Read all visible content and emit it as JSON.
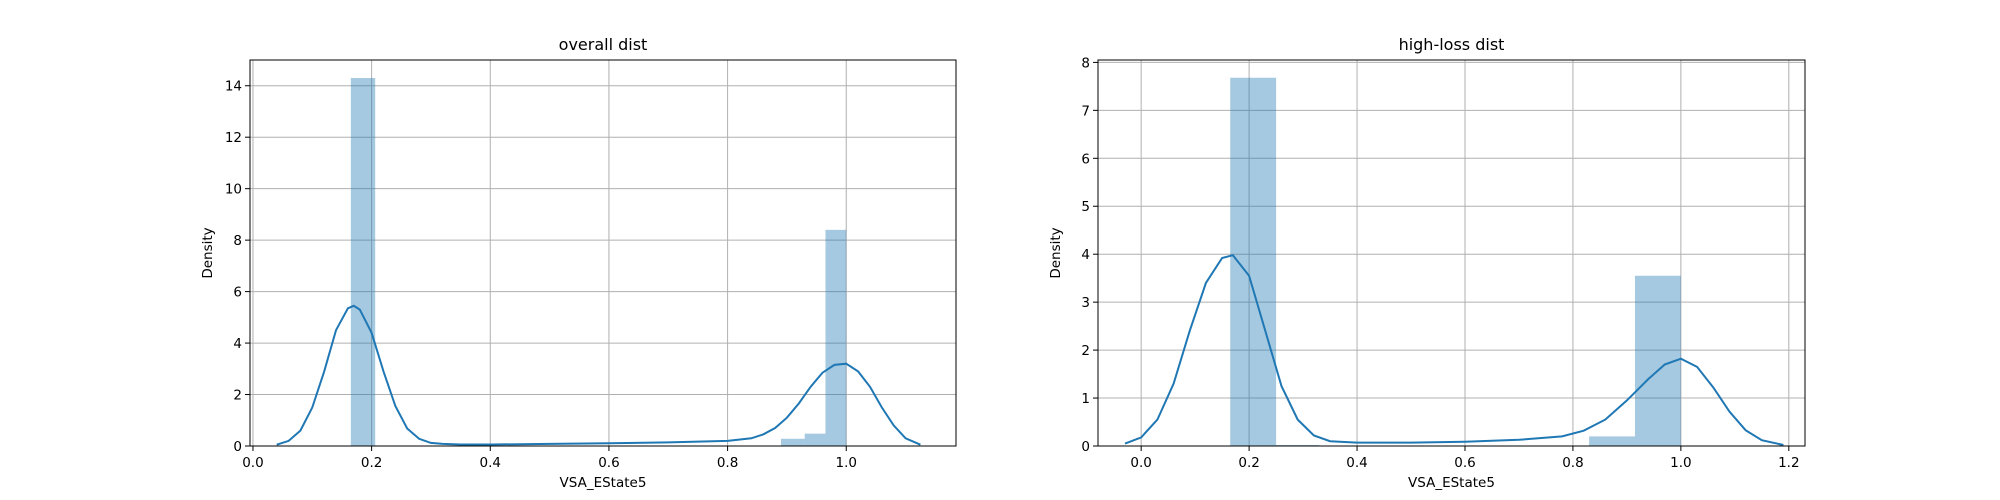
{
  "chart_data": [
    {
      "type": "histogram+kde",
      "title": "overall dist",
      "xlabel": "VSA_EState5",
      "ylabel": "Density",
      "xlim": [
        -0.005,
        1.185
      ],
      "ylim": [
        0,
        15
      ],
      "grid": true,
      "xticks": [
        0.0,
        0.2,
        0.4,
        0.6,
        0.8,
        1.0
      ],
      "xtick_labels": [
        "0.0",
        "0.2",
        "0.4",
        "0.6",
        "0.8",
        "1.0"
      ],
      "yticks": [
        0,
        2,
        4,
        6,
        8,
        10,
        12,
        14
      ],
      "ytick_labels": [
        "0",
        "2",
        "4",
        "6",
        "8",
        "10",
        "12",
        "14"
      ],
      "color": "#1f77b4",
      "bars": [
        {
          "x0": 0.165,
          "x1": 0.206,
          "value": 14.3
        },
        {
          "x0": 0.89,
          "x1": 0.93,
          "value": 0.28
        },
        {
          "x0": 0.93,
          "x1": 0.965,
          "value": 0.48
        },
        {
          "x0": 0.965,
          "x1": 1.0,
          "value": 8.4
        }
      ],
      "kde": {
        "x": [
          0.04,
          0.06,
          0.08,
          0.1,
          0.12,
          0.14,
          0.16,
          0.17,
          0.18,
          0.2,
          0.22,
          0.24,
          0.26,
          0.28,
          0.3,
          0.32,
          0.35,
          0.4,
          0.5,
          0.6,
          0.7,
          0.8,
          0.84,
          0.86,
          0.88,
          0.9,
          0.92,
          0.94,
          0.96,
          0.98,
          1.0,
          1.02,
          1.04,
          1.06,
          1.08,
          1.1,
          1.125
        ],
        "y": [
          0.05,
          0.2,
          0.6,
          1.5,
          2.9,
          4.5,
          5.35,
          5.45,
          5.3,
          4.4,
          2.9,
          1.55,
          0.68,
          0.28,
          0.12,
          0.08,
          0.06,
          0.06,
          0.08,
          0.11,
          0.14,
          0.2,
          0.3,
          0.45,
          0.7,
          1.1,
          1.65,
          2.3,
          2.85,
          3.15,
          3.2,
          2.9,
          2.3,
          1.5,
          0.8,
          0.3,
          0.05
        ]
      }
    },
    {
      "type": "histogram+kde",
      "title": "high-loss dist",
      "xlabel": "VSA_EState5",
      "ylabel": "Density",
      "xlim": [
        -0.08,
        1.23
      ],
      "ylim": [
        0,
        8.05
      ],
      "grid": true,
      "xticks": [
        0.0,
        0.2,
        0.4,
        0.6,
        0.8,
        1.0,
        1.2
      ],
      "xtick_labels": [
        "0.0",
        "0.2",
        "0.4",
        "0.6",
        "0.8",
        "1.0",
        "1.2"
      ],
      "yticks": [
        0,
        1,
        2,
        3,
        4,
        5,
        6,
        7,
        8
      ],
      "ytick_labels": [
        "0",
        "1",
        "2",
        "3",
        "4",
        "5",
        "6",
        "7",
        "8"
      ],
      "color": "#1f77b4",
      "bars": [
        {
          "x0": 0.165,
          "x1": 0.25,
          "value": 7.68
        },
        {
          "x0": 0.25,
          "x1": 0.33,
          "value": 0.02
        },
        {
          "x0": 0.83,
          "x1": 0.915,
          "value": 0.2
        },
        {
          "x0": 0.915,
          "x1": 1.0,
          "value": 3.55
        }
      ],
      "kde": {
        "x": [
          -0.03,
          0.0,
          0.03,
          0.06,
          0.09,
          0.12,
          0.15,
          0.17,
          0.2,
          0.23,
          0.26,
          0.29,
          0.32,
          0.35,
          0.4,
          0.5,
          0.6,
          0.7,
          0.78,
          0.82,
          0.86,
          0.9,
          0.94,
          0.97,
          1.0,
          1.03,
          1.06,
          1.09,
          1.12,
          1.15,
          1.19
        ],
        "y": [
          0.05,
          0.18,
          0.55,
          1.3,
          2.4,
          3.4,
          3.92,
          3.98,
          3.55,
          2.4,
          1.25,
          0.55,
          0.22,
          0.1,
          0.07,
          0.07,
          0.09,
          0.13,
          0.2,
          0.32,
          0.55,
          0.95,
          1.4,
          1.7,
          1.82,
          1.65,
          1.22,
          0.72,
          0.33,
          0.12,
          0.02
        ]
      }
    }
  ]
}
